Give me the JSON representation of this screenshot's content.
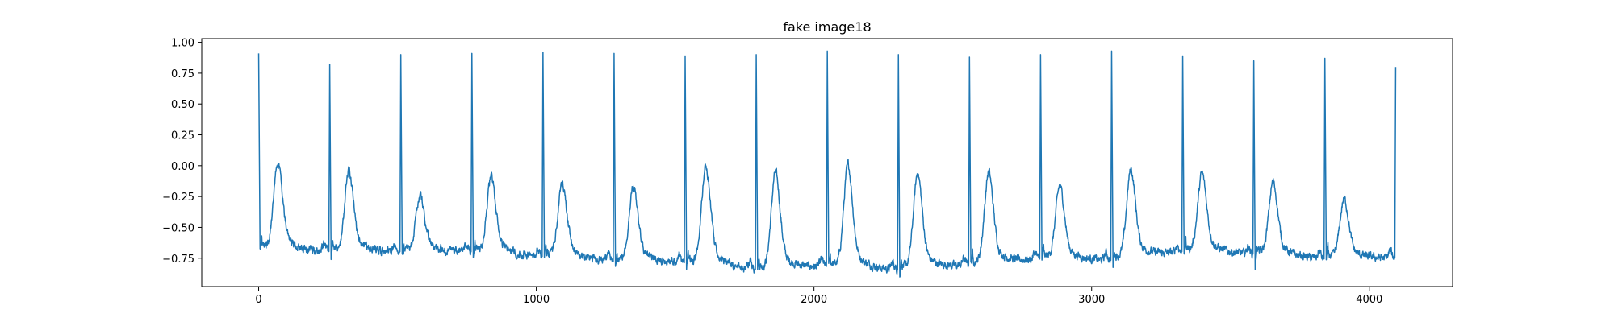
{
  "chart_data": {
    "type": "line",
    "title": "fake image18",
    "xlabel": "",
    "ylabel": "",
    "xlim": [
      -205,
      4300
    ],
    "ylim": [
      -0.98,
      1.03
    ],
    "x_ticks": [
      0,
      1000,
      2000,
      3000,
      4000
    ],
    "x_tick_labels": [
      "0",
      "1000",
      "2000",
      "3000",
      "4000"
    ],
    "y_ticks": [
      1.0,
      0.75,
      0.5,
      0.25,
      0.0,
      -0.25,
      -0.5,
      -0.75
    ],
    "y_tick_labels": [
      "1.00",
      "0.75",
      "0.50",
      "0.25",
      "0.00",
      "−0.25",
      "−0.50",
      "−0.75"
    ],
    "grid": false,
    "series": [
      {
        "color": "#1f77b4",
        "n_points": 4096,
        "beats": [
          {
            "x": 0,
            "peak": 0.91,
            "t_amp": 0.02,
            "t_delay": 70,
            "s_min": -0.67,
            "base": -0.68
          },
          {
            "x": 256,
            "peak": 0.82,
            "t_amp": -0.05,
            "t_delay": 70,
            "s_min": -0.78,
            "base": -0.7
          },
          {
            "x": 512,
            "peak": 0.9,
            "t_amp": -0.24,
            "t_delay": 70,
            "s_min": -0.72,
            "base": -0.7
          },
          {
            "x": 768,
            "peak": 0.91,
            "t_amp": -0.09,
            "t_delay": 70,
            "s_min": -0.73,
            "base": -0.7
          },
          {
            "x": 1024,
            "peak": 0.92,
            "t_amp": -0.14,
            "t_delay": 70,
            "s_min": -0.73,
            "base": -0.74
          },
          {
            "x": 1280,
            "peak": 0.91,
            "t_amp": -0.16,
            "t_delay": 70,
            "s_min": -0.81,
            "base": -0.78
          },
          {
            "x": 1536,
            "peak": 0.89,
            "t_amp": 0.0,
            "t_delay": 75,
            "s_min": -0.82,
            "base": -0.79
          },
          {
            "x": 1792,
            "peak": 0.9,
            "t_amp": -0.05,
            "t_delay": 70,
            "s_min": -0.83,
            "base": -0.85
          },
          {
            "x": 2048,
            "peak": 0.93,
            "t_amp": 0.01,
            "t_delay": 75,
            "s_min": -0.8,
            "base": -0.82
          },
          {
            "x": 2304,
            "peak": 0.9,
            "t_amp": -0.06,
            "t_delay": 70,
            "s_min": -0.89,
            "base": -0.85
          },
          {
            "x": 2560,
            "peak": 0.88,
            "t_amp": -0.05,
            "t_delay": 70,
            "s_min": -0.8,
            "base": -0.81
          },
          {
            "x": 2816,
            "peak": 0.9,
            "t_amp": -0.16,
            "t_delay": 70,
            "s_min": -0.76,
            "base": -0.76
          },
          {
            "x": 3072,
            "peak": 0.93,
            "t_amp": -0.03,
            "t_delay": 70,
            "s_min": -0.82,
            "base": -0.77
          },
          {
            "x": 3328,
            "peak": 0.89,
            "t_amp": -0.06,
            "t_delay": 70,
            "s_min": -0.74,
            "base": -0.7
          },
          {
            "x": 3584,
            "peak": 0.85,
            "t_amp": -0.13,
            "t_delay": 70,
            "s_min": -0.85,
            "base": -0.72
          },
          {
            "x": 3840,
            "peak": 0.87,
            "t_amp": -0.27,
            "t_delay": 70,
            "s_min": -0.76,
            "base": -0.76
          },
          {
            "x": 4095,
            "peak": 0.8,
            "t_amp": null,
            "t_delay": null,
            "s_min": -0.75,
            "base": -0.75
          }
        ]
      }
    ]
  }
}
